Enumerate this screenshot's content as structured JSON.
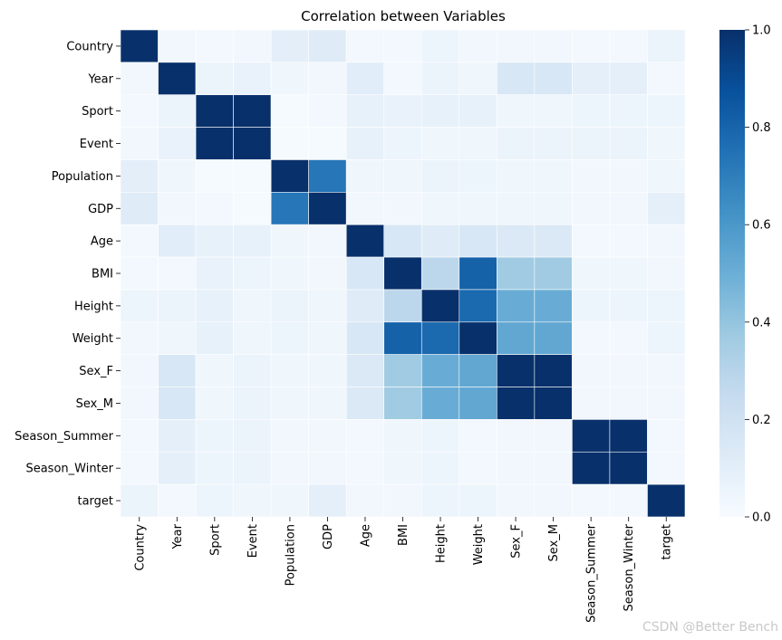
{
  "chart_data": {
    "type": "heatmap",
    "title": "Correlation between Variables",
    "row_labels": [
      "Country",
      "Year",
      "Sport",
      "Event",
      "Population",
      "GDP",
      "Age",
      "BMI",
      "Height",
      "Weight",
      "Sex_F",
      "Sex_M",
      "Season_Summer",
      "Season_Winter",
      "target"
    ],
    "col_labels": [
      "Country",
      "Year",
      "Sport",
      "Event",
      "Population",
      "GDP",
      "Age",
      "BMI",
      "Height",
      "Weight",
      "Sex_F",
      "Sex_M",
      "Season_Summer",
      "Season_Winter",
      "target"
    ],
    "values": [
      [
        1.0,
        0.03,
        0.02,
        0.03,
        0.1,
        0.12,
        0.02,
        0.02,
        0.05,
        0.03,
        0.03,
        0.03,
        0.02,
        0.02,
        0.06
      ],
      [
        0.03,
        1.0,
        0.06,
        0.07,
        0.04,
        0.03,
        0.11,
        0.02,
        0.06,
        0.04,
        0.16,
        0.16,
        0.09,
        0.09,
        0.02
      ],
      [
        0.02,
        0.06,
        1.0,
        1.0,
        0.01,
        0.02,
        0.08,
        0.07,
        0.08,
        0.08,
        0.04,
        0.04,
        0.05,
        0.05,
        0.05
      ],
      [
        0.03,
        0.07,
        1.0,
        1.0,
        0.01,
        0.01,
        0.08,
        0.05,
        0.04,
        0.04,
        0.06,
        0.06,
        0.06,
        0.06,
        0.04
      ],
      [
        0.1,
        0.04,
        0.01,
        0.01,
        1.0,
        0.73,
        0.04,
        0.04,
        0.06,
        0.05,
        0.04,
        0.04,
        0.03,
        0.03,
        0.04
      ],
      [
        0.12,
        0.03,
        0.02,
        0.01,
        0.73,
        1.0,
        0.03,
        0.03,
        0.04,
        0.04,
        0.04,
        0.04,
        0.03,
        0.03,
        0.09
      ],
      [
        0.02,
        0.11,
        0.08,
        0.08,
        0.04,
        0.03,
        1.0,
        0.16,
        0.12,
        0.16,
        0.14,
        0.14,
        0.02,
        0.02,
        0.03
      ],
      [
        0.02,
        0.02,
        0.07,
        0.05,
        0.04,
        0.03,
        0.16,
        1.0,
        0.28,
        0.81,
        0.37,
        0.37,
        0.04,
        0.04,
        0.03
      ],
      [
        0.05,
        0.06,
        0.08,
        0.04,
        0.06,
        0.04,
        0.12,
        0.28,
        1.0,
        0.78,
        0.51,
        0.51,
        0.05,
        0.05,
        0.05
      ],
      [
        0.03,
        0.04,
        0.08,
        0.04,
        0.05,
        0.04,
        0.16,
        0.81,
        0.78,
        1.0,
        0.53,
        0.53,
        0.02,
        0.02,
        0.05
      ],
      [
        0.03,
        0.16,
        0.04,
        0.06,
        0.04,
        0.04,
        0.14,
        0.37,
        0.51,
        0.53,
        1.0,
        1.0,
        0.03,
        0.03,
        0.03
      ],
      [
        0.03,
        0.16,
        0.04,
        0.06,
        0.04,
        0.04,
        0.14,
        0.37,
        0.51,
        0.53,
        1.0,
        1.0,
        0.03,
        0.03,
        0.03
      ],
      [
        0.02,
        0.09,
        0.05,
        0.06,
        0.03,
        0.03,
        0.02,
        0.04,
        0.05,
        0.02,
        0.03,
        0.03,
        1.0,
        1.0,
        0.02
      ],
      [
        0.02,
        0.09,
        0.05,
        0.06,
        0.03,
        0.03,
        0.02,
        0.04,
        0.05,
        0.02,
        0.03,
        0.03,
        1.0,
        1.0,
        0.02
      ],
      [
        0.06,
        0.02,
        0.05,
        0.04,
        0.04,
        0.09,
        0.03,
        0.03,
        0.05,
        0.05,
        0.03,
        0.03,
        0.02,
        0.02,
        1.0
      ]
    ],
    "colormap": "Blues",
    "colorbar": {
      "min": 0.0,
      "max": 1.0,
      "ticks": [
        "0.0",
        "0.2",
        "0.4",
        "0.6",
        "0.8",
        "1.0"
      ],
      "tick_values": [
        0.0,
        0.2,
        0.4,
        0.6,
        0.8,
        1.0
      ]
    }
  },
  "watermark": "CSDN @Better Bench"
}
